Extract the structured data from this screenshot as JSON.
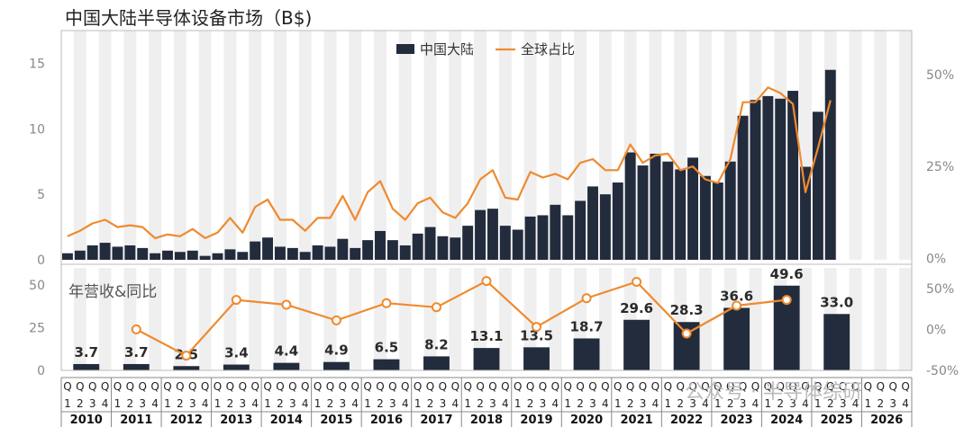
{
  "title": "中国大陆半导体设备市场（B$)",
  "watermark": "公众号 · 半导体综研",
  "chart_data": [
    {
      "type": "bar+line",
      "title": "中国大陆半导体设备市场（B$)",
      "categories_years": [
        "2010",
        "2011",
        "2012",
        "2013",
        "2014",
        "2015",
        "2016",
        "2017",
        "2018",
        "2019",
        "2020",
        "2021",
        "2022",
        "2023",
        "2024",
        "2025",
        "2026"
      ],
      "quarter_labels": [
        "1",
        "2",
        "3",
        "4"
      ],
      "quarter_prefix": "Q",
      "y_left_ticks": [
        "0",
        "5",
        "10",
        "15"
      ],
      "y_left_range": [
        0,
        17.5
      ],
      "y_right_ticks": [
        "0%",
        "25%",
        "50%"
      ],
      "y_right_range": [
        -0.004,
        0.62
      ],
      "legend": "top-center",
      "series": [
        {
          "name": "中国大陆",
          "type": "bar",
          "color": "#232c3d",
          "values": [
            0.5,
            0.7,
            1.1,
            1.3,
            1.0,
            1.1,
            0.9,
            0.5,
            0.7,
            0.6,
            0.7,
            0.3,
            0.5,
            0.8,
            0.6,
            1.4,
            1.7,
            1.0,
            0.9,
            0.6,
            1.1,
            1.0,
            1.6,
            0.9,
            1.5,
            2.2,
            1.5,
            1.1,
            2.0,
            2.5,
            1.8,
            1.7,
            2.6,
            3.8,
            3.9,
            2.6,
            2.3,
            3.3,
            3.4,
            4.2,
            3.4,
            4.5,
            5.6,
            5.0,
            5.9,
            8.2,
            7.2,
            8.1,
            7.5,
            6.9,
            7.8,
            6.4,
            5.9,
            7.5,
            11.0,
            12.2,
            12.5,
            12.3,
            12.9,
            7.1,
            11.3,
            14.5
          ]
        },
        {
          "name": "全球占比",
          "type": "line",
          "color": "#ef8a2e",
          "values": [
            0.06,
            0.075,
            0.095,
            0.105,
            0.085,
            0.09,
            0.085,
            0.055,
            0.065,
            0.06,
            0.08,
            0.055,
            0.07,
            0.11,
            0.07,
            0.14,
            0.16,
            0.105,
            0.105,
            0.075,
            0.11,
            0.11,
            0.17,
            0.105,
            0.18,
            0.21,
            0.135,
            0.105,
            0.15,
            0.165,
            0.125,
            0.11,
            0.15,
            0.215,
            0.24,
            0.165,
            0.16,
            0.235,
            0.22,
            0.23,
            0.215,
            0.26,
            0.27,
            0.24,
            0.24,
            0.31,
            0.26,
            0.28,
            0.285,
            0.24,
            0.25,
            0.215,
            0.205,
            0.27,
            0.425,
            0.425,
            0.465,
            0.45,
            0.42,
            0.18,
            0.3,
            0.43
          ]
        }
      ]
    },
    {
      "type": "bar+line",
      "subtitle": "年营收&同比",
      "y_left_ticks": [
        "0",
        "25",
        "50"
      ],
      "y_left_range": [
        0,
        60
      ],
      "y_right_ticks": [
        "-50%",
        "0%",
        "50%"
      ],
      "y_right_range": [
        -0.5,
        0.75
      ],
      "series": [
        {
          "name": "年营收",
          "type": "bar",
          "color": "#232c3d",
          "values": [
            3.7,
            3.7,
            2.5,
            3.4,
            4.4,
            4.9,
            6.5,
            8.2,
            13.1,
            13.5,
            18.7,
            29.6,
            28.3,
            36.6,
            49.6,
            33.0
          ],
          "labels": [
            "3.7",
            "3.7",
            "2.5",
            "3.4",
            "4.4",
            "4.9",
            "6.5",
            "8.2",
            "13.1",
            "13.5",
            "18.7",
            "29.6",
            "28.3",
            "36.6",
            "49.6",
            "33.0"
          ]
        },
        {
          "name": "同比",
          "type": "line",
          "color": "#ef8a2e",
          "values": [
            null,
            0.0,
            -0.32,
            0.36,
            0.3,
            0.11,
            0.32,
            0.27,
            0.59,
            0.03,
            0.38,
            0.58,
            -0.05,
            0.29,
            0.36,
            null
          ]
        }
      ]
    }
  ]
}
